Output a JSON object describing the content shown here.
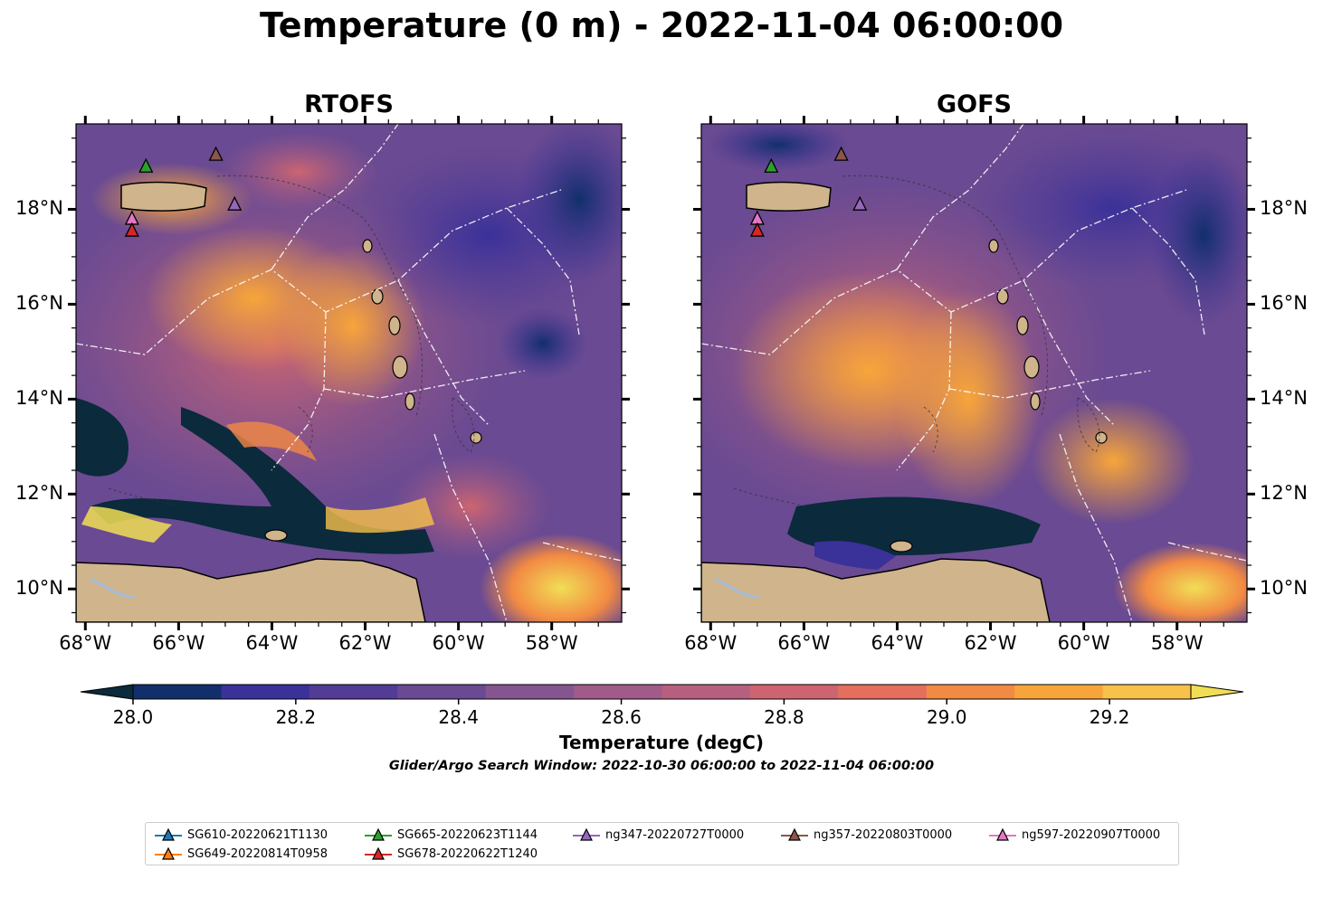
{
  "title": "Temperature (0 m) - 2022-11-04 06:00:00",
  "panels": [
    {
      "title": "RTOFS"
    },
    {
      "title": "GOFS"
    }
  ],
  "axes": {
    "lon_ticks": [
      "68°W",
      "66°W",
      "64°W",
      "62°W",
      "60°W",
      "58°W"
    ],
    "lat_ticks": [
      "18°N",
      "16°N",
      "14°N",
      "12°N",
      "10°N"
    ],
    "lon_range": [
      -68.2,
      -56.5
    ],
    "lat_range": [
      9.3,
      19.8
    ]
  },
  "colorbar": {
    "label": "Temperature (degC)",
    "ticks": [
      "28.0",
      "28.2",
      "28.4",
      "28.6",
      "28.8",
      "29.0",
      "29.2"
    ],
    "range": [
      27.9,
      29.3
    ],
    "colors": [
      "#0b2a3c",
      "#112f6b",
      "#3a3199",
      "#523c96",
      "#6a4a92",
      "#855590",
      "#a15b88",
      "#b75f7e",
      "#cd6570",
      "#e36f5c",
      "#f28a43",
      "#f7a53a",
      "#f8c14a",
      "#f1de55"
    ]
  },
  "search_window": "Glider/Argo Search Window: 2022-10-30 06:00:00 to 2022-11-04 06:00:00",
  "legend": [
    {
      "label": "SG610-20220621T1130",
      "color": "#1f77b4"
    },
    {
      "label": "SG649-20220814T0958",
      "color": "#ff7f0e"
    },
    {
      "label": "SG665-20220623T1144",
      "color": "#2ca02c"
    },
    {
      "label": "SG678-20220622T1240",
      "color": "#d62728"
    },
    {
      "label": "ng347-20220727T0000",
      "color": "#9467bd"
    },
    {
      "label": "ng357-20220803T0000",
      "color": "#8c564b"
    },
    {
      "label": "ng597-20220907T0000",
      "color": "#e377c2"
    }
  ],
  "markers": [
    {
      "id": "SG665-20220623T1144",
      "lon": -66.7,
      "lat": 18.9,
      "color": "#2ca02c"
    },
    {
      "id": "ng357-20220803T0000",
      "lon": -65.2,
      "lat": 19.15,
      "color": "#8c564b"
    },
    {
      "id": "ng347-20220727T0000",
      "lon": -64.8,
      "lat": 18.1,
      "color": "#9467bd"
    },
    {
      "id": "ng597-20220907T0000",
      "lon": -67.0,
      "lat": 17.8,
      "color": "#e377c2"
    },
    {
      "id": "SG678-20220622T1240",
      "lon": -67.0,
      "lat": 17.55,
      "color": "#d62728"
    }
  ]
}
